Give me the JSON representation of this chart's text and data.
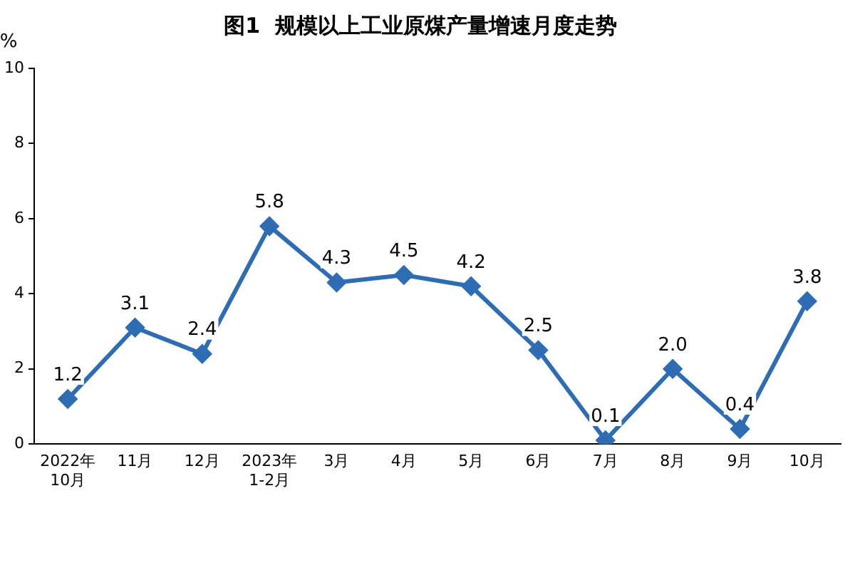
{
  "chart_data": {
    "type": "line",
    "title": "图1  规模以上工业原煤产量增速月度走势",
    "ylabel": "%",
    "categories": [
      "2022年\n10月",
      "11月",
      "12月",
      "2023年\n1-2月",
      "3月",
      "4月",
      "5月",
      "6月",
      "7月",
      "8月",
      "9月",
      "10月"
    ],
    "series": [
      {
        "color": "#2e6db4",
        "values": [
          1.2,
          3.1,
          2.4,
          5.8,
          4.3,
          4.5,
          4.2,
          2.5,
          0.1,
          2.0,
          0.4,
          3.8
        ],
        "value_labels": [
          "1.2",
          "3.1",
          "2.4",
          "5.8",
          "4.3",
          "4.5",
          "4.2",
          "2.5",
          "0.1",
          "2.0",
          "0.4",
          "3.8"
        ]
      }
    ],
    "ylim": [
      0,
      10
    ],
    "yticks": [
      0,
      2,
      4,
      6,
      8,
      10
    ],
    "grid": false,
    "legend": false,
    "marker": "diamond",
    "line_style": "solid"
  }
}
